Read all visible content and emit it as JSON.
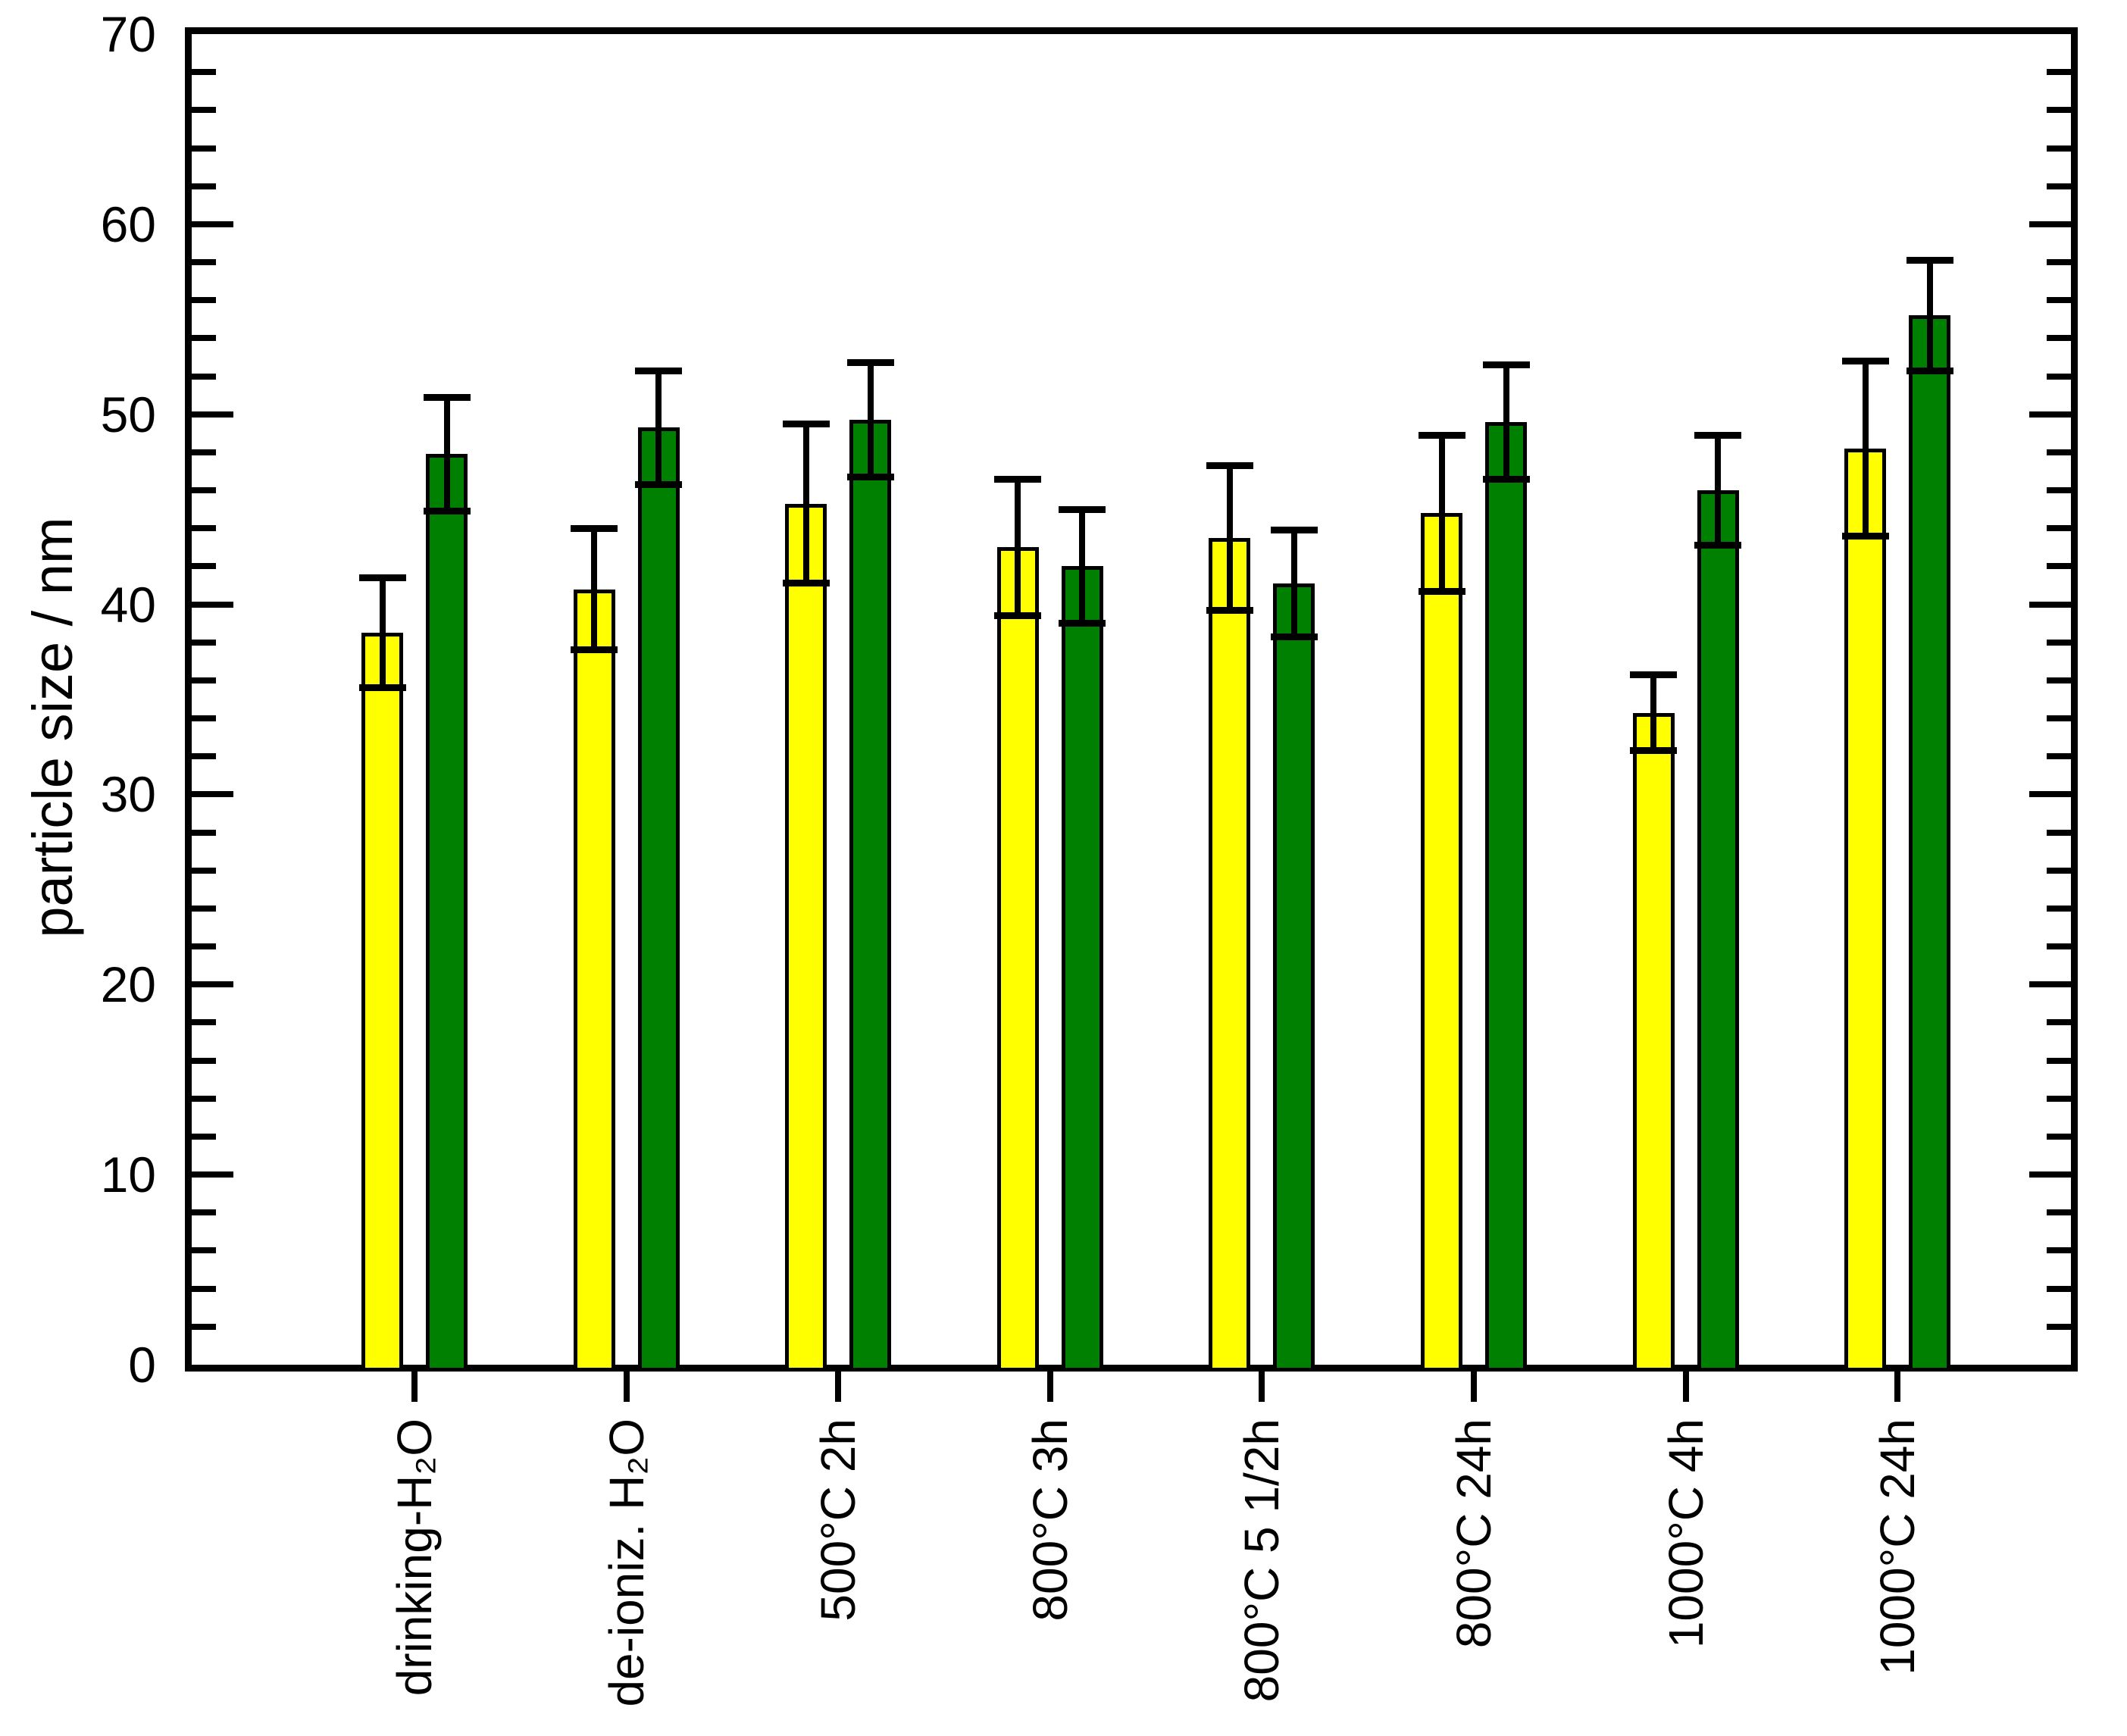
{
  "chart_data": {
    "type": "bar",
    "title": "",
    "xlabel": "",
    "ylabel": "particle size / nm",
    "ylim": [
      0,
      70
    ],
    "ytick_major_step": 10,
    "ytick_minor_step": 2,
    "ytick_labels": [
      "0",
      "10",
      "20",
      "30",
      "40",
      "50",
      "60",
      "70"
    ],
    "grid": false,
    "legend_position": "none",
    "background_color": "#ffffff",
    "frame_color": "#000000",
    "error_bar_color": "#000000",
    "categories": [
      "drinking-H₂O",
      "de-ioniz. H₂O",
      "500°C 2h",
      "800°C 3h",
      "800°C 5 1/2h",
      "800°C 24h",
      "1000°C 4h",
      "1000°C 24h"
    ],
    "series": [
      {
        "name": "yellow",
        "color": "#ffff00",
        "outline": "#000000",
        "values": [
          38.5,
          40.8,
          45.3,
          43.0,
          43.5,
          44.8,
          34.3,
          48.2
        ],
        "errors": [
          2.9,
          3.2,
          4.2,
          3.6,
          3.8,
          4.1,
          2.0,
          4.6
        ]
      },
      {
        "name": "green",
        "color": "#008000",
        "outline": "#000000",
        "values": [
          47.9,
          49.3,
          49.7,
          42.0,
          41.1,
          49.6,
          46.0,
          55.2
        ],
        "errors": [
          3.0,
          3.0,
          3.0,
          3.0,
          2.8,
          3.0,
          2.9,
          2.9
        ]
      }
    ]
  }
}
